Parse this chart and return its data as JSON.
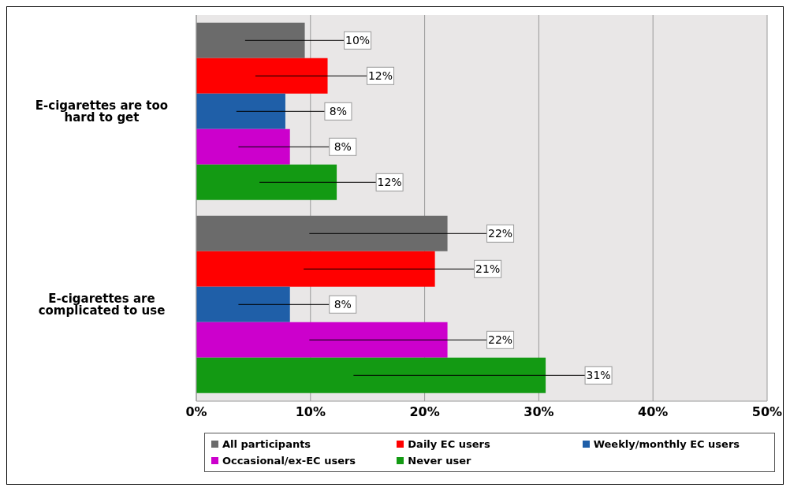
{
  "chart_data": {
    "type": "bar",
    "orientation": "horizontal",
    "categories": [
      "E-cigarettes are too hard to get",
      "E-cigarettes are complicated to use"
    ],
    "series": [
      {
        "name": "All participants",
        "color": "#6b6b6b",
        "values": [
          9.5,
          22
        ],
        "value_labels": [
          "10%",
          "22%"
        ]
      },
      {
        "name": "Daily EC users",
        "color": "#ff0000",
        "values": [
          11.5,
          20.9
        ],
        "value_labels": [
          "12%",
          "21%"
        ]
      },
      {
        "name": "Weekly/monthly EC users",
        "color": "#1f5fa8",
        "values": [
          7.8,
          8.2
        ],
        "value_labels": [
          "8%",
          "8%"
        ]
      },
      {
        "name": "Occasional/ex-EC users",
        "color": "#cc00cc",
        "values": [
          8.2,
          22
        ],
        "value_labels": [
          "8%",
          "22%"
        ]
      },
      {
        "name": "Never user",
        "color": "#139a13",
        "values": [
          12.3,
          30.6
        ],
        "value_labels": [
          "12%",
          "31%"
        ]
      }
    ],
    "xlim": [
      0,
      50
    ],
    "xticks": [
      {
        "value": 0,
        "label": "0%"
      },
      {
        "value": 10,
        "label": "10%"
      },
      {
        "value": 20,
        "label": "20%"
      },
      {
        "value": 30,
        "label": "30%"
      },
      {
        "value": 40,
        "label": "40%"
      },
      {
        "value": 50,
        "label": "50%"
      }
    ],
    "grid": "x",
    "legend": "bottom"
  }
}
